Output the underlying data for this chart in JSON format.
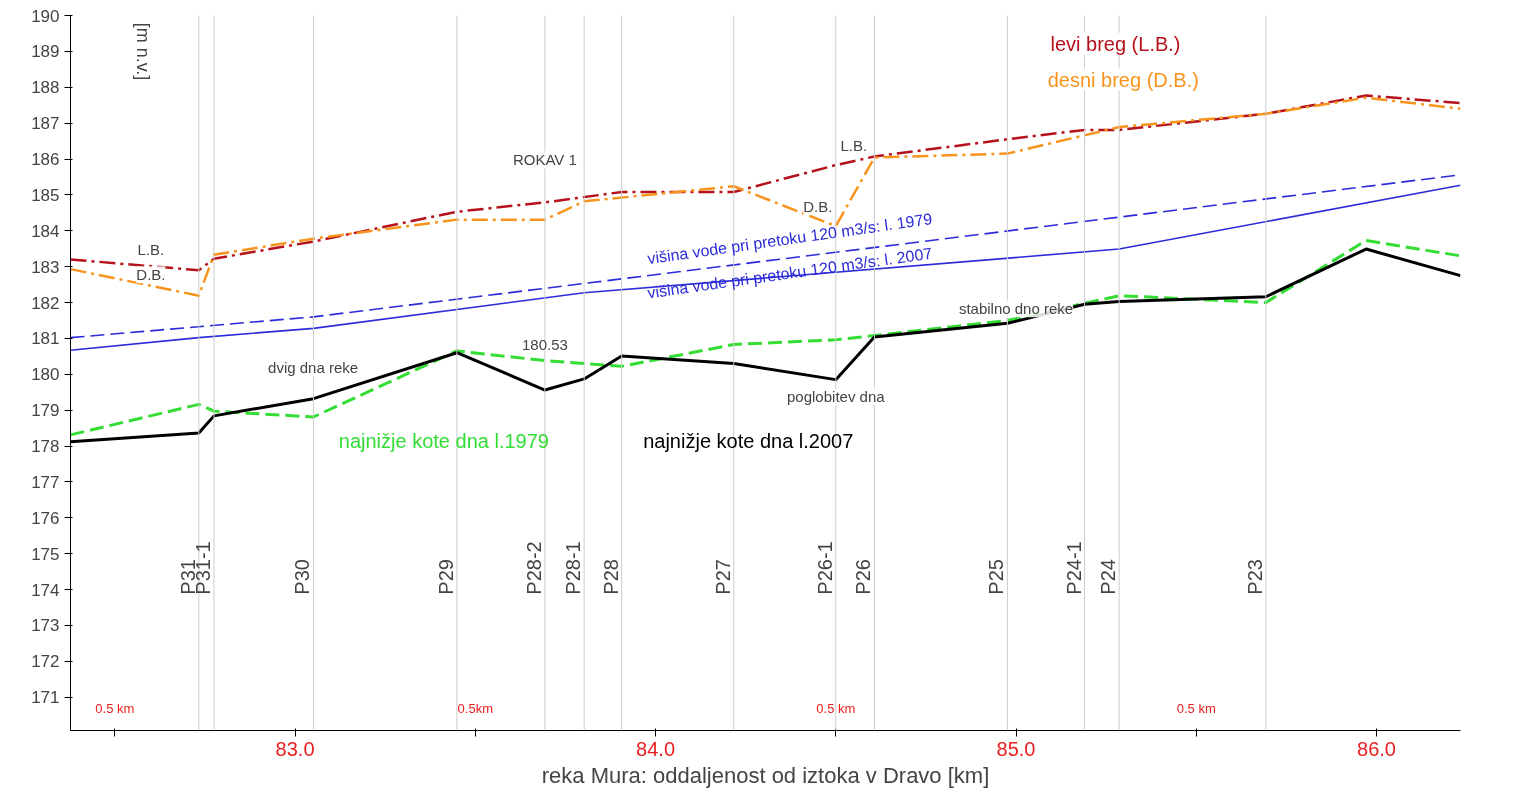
{
  "chart_data": {
    "type": "line",
    "xlabel": "reka Mura: oddaljenost od iztoka v Dravo [km]",
    "ylabel": "[m n.v.]",
    "xlim": [
      82.377,
      86.233
    ],
    "ylim": [
      170.07,
      190
    ],
    "xticks": [
      {
        "value": 82.5,
        "label": null
      },
      {
        "value": 83,
        "label": "83.0"
      },
      {
        "value": 83.5,
        "label": null
      },
      {
        "value": 84,
        "label": "84.0"
      },
      {
        "value": 84.5,
        "label": null
      },
      {
        "value": 85,
        "label": "85.0"
      },
      {
        "value": 85.5,
        "label": null
      },
      {
        "value": 86,
        "label": "86.0"
      }
    ],
    "yticks": [
      171,
      172,
      173,
      174,
      175,
      176,
      177,
      178,
      179,
      180,
      181,
      182,
      183,
      184,
      185,
      186,
      187,
      188,
      189,
      190
    ],
    "grid": false,
    "marker": "none",
    "series": [
      {
        "name": "levi breg (L.B.)",
        "color": "#b5121b",
        "line_style": "dashdot",
        "x": [
          82.377,
          82.733,
          82.775,
          83.051,
          83.449,
          83.693,
          83.906,
          84.217,
          84.5,
          84.607,
          84.976,
          85.19,
          85.286,
          85.693,
          85.971,
          86.233
        ],
        "values": [
          183.2,
          182.9,
          183.22,
          183.7,
          184.53,
          184.79,
          185.08,
          185.08,
          185.83,
          186.07,
          186.55,
          186.81,
          186.81,
          187.26,
          187.77,
          187.56
        ]
      },
      {
        "name": "desni breg (D.B.)",
        "color": "#f7941d",
        "line_style": "dashdot",
        "x": [
          82.377,
          82.733,
          82.775,
          83.051,
          83.449,
          83.693,
          83.802,
          84.217,
          84.5,
          84.607,
          84.976,
          85.286,
          85.693,
          85.971,
          86.233
        ],
        "values": [
          182.93,
          182.19,
          183.33,
          183.78,
          184.31,
          184.31,
          184.82,
          185.24,
          184.13,
          186.04,
          186.15,
          186.89,
          187.26,
          187.71,
          187.4
        ]
      },
      {
        "name": "višina vode pri pretoku 120 m3/s: l. 1979",
        "color": "#2b2bd9",
        "line_style": "dashed",
        "x": [
          82.377,
          83.051,
          83.802,
          86.233
        ],
        "values": [
          181.02,
          181.6,
          182.53,
          185.56
        ]
      },
      {
        "name": "višina vode pri pretoku 120 m3/s: l. 2007",
        "color": "#2b2bd9",
        "line_style": "solid",
        "x": [
          82.377,
          82.733,
          83.051,
          83.802,
          85.286,
          86.233
        ],
        "values": [
          180.67,
          181.02,
          181.28,
          182.27,
          183.49,
          185.27
        ]
      },
      {
        "name": "najnižje kote dna l.1979",
        "color": "#33dd33",
        "line_style": "dashed",
        "x": [
          82.377,
          82.733,
          82.775,
          83.051,
          83.449,
          83.693,
          83.906,
          84.217,
          84.5,
          84.976,
          85.286,
          85.693,
          85.971,
          86.233
        ],
        "values": [
          178.31,
          179.16,
          178.97,
          178.81,
          180.65,
          180.38,
          180.22,
          180.83,
          180.96,
          181.5,
          182.19,
          182.0,
          183.73,
          183.3
        ]
      },
      {
        "name": "najnižje kote dna l.2007",
        "color": "#000000",
        "line_style": "solid",
        "x": [
          82.377,
          82.733,
          82.775,
          83.051,
          83.449,
          83.693,
          83.802,
          83.906,
          84.217,
          84.5,
          84.607,
          84.976,
          85.19,
          85.286,
          85.693,
          85.971,
          86.233
        ],
        "values": [
          178.12,
          178.36,
          178.84,
          179.32,
          180.6,
          179.56,
          179.87,
          180.51,
          180.3,
          179.85,
          181.04,
          181.42,
          181.95,
          182.03,
          182.16,
          183.49,
          182.75
        ]
      }
    ],
    "ref_lines": [
      {
        "axis": "x",
        "value": 82.733,
        "label": "P31",
        "color": "#cccccc"
      },
      {
        "axis": "x",
        "value": 82.775,
        "label": "P31-1",
        "color": "#cccccc"
      },
      {
        "axis": "x",
        "value": 83.051,
        "label": "P30",
        "color": "#cccccc"
      },
      {
        "axis": "x",
        "value": 83.449,
        "label": "P29",
        "color": "#cccccc"
      },
      {
        "axis": "x",
        "value": 83.693,
        "label": "P28-2",
        "color": "#cccccc"
      },
      {
        "axis": "x",
        "value": 83.802,
        "label": "P28-1",
        "color": "#cccccc"
      },
      {
        "axis": "x",
        "value": 83.906,
        "label": "P28",
        "color": "#cccccc"
      },
      {
        "axis": "x",
        "value": 84.217,
        "label": "P27",
        "color": "#cccccc"
      },
      {
        "axis": "x",
        "value": 84.5,
        "label": "P26-1",
        "color": "#cccccc"
      },
      {
        "axis": "x",
        "value": 84.607,
        "label": "P26",
        "color": "#cccccc"
      },
      {
        "axis": "x",
        "value": 84.976,
        "label": "P25",
        "color": "#cccccc"
      },
      {
        "axis": "x",
        "value": 85.19,
        "label": "P24-1",
        "color": "#cccccc"
      },
      {
        "axis": "x",
        "value": 85.286,
        "label": "P24",
        "color": "#cccccc"
      },
      {
        "axis": "x",
        "value": 85.693,
        "label": "P23",
        "color": "#cccccc"
      }
    ],
    "annotations": [
      {
        "text": "ROKAV 1",
        "x": 83.693,
        "y": 185.6
      },
      {
        "text": "180.53",
        "x": 83.693,
        "y": 180.53
      },
      {
        "text": "L.B.",
        "x": 82.6,
        "y": 183.1
      },
      {
        "text": "D.B.",
        "x": 82.6,
        "y": 182.4
      },
      {
        "text": "L.B.",
        "x": 84.55,
        "y": 186.0
      },
      {
        "text": "D.B.",
        "x": 84.45,
        "y": 184.3
      },
      {
        "text": "dvig dna reke",
        "x": 83.05,
        "y": 179.8
      },
      {
        "text": "poglobitev dna",
        "x": 84.5,
        "y": 179.0
      },
      {
        "text": "stabilno dno reke",
        "x": 85.0,
        "y": 181.45
      },
      "0.5 km",
      "0.5km",
      "0.5 km",
      "0.5 km"
    ]
  }
}
